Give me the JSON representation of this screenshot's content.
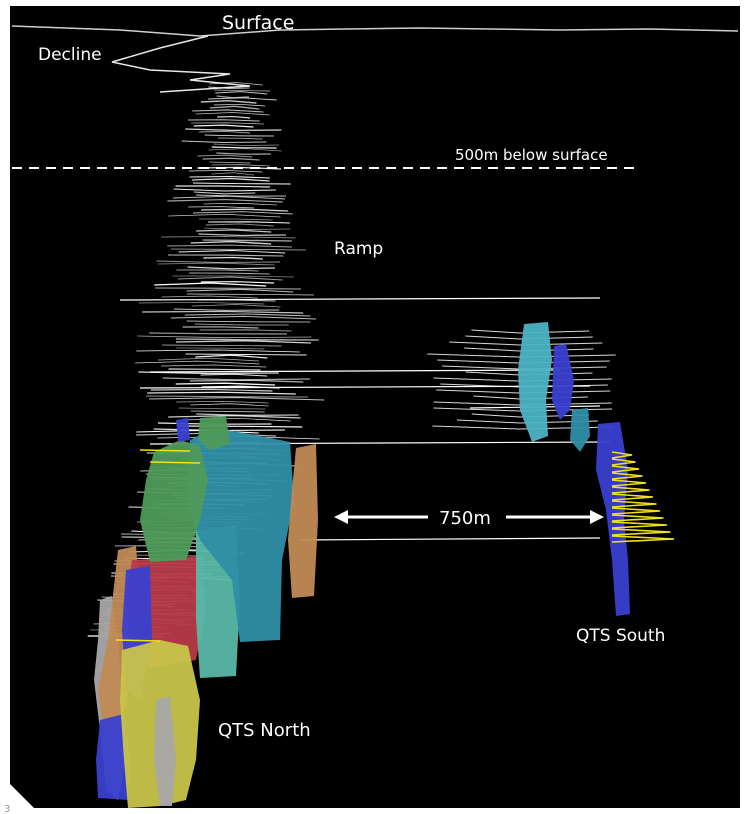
{
  "labels": {
    "surface": "Surface",
    "decline": "Decline",
    "depth_line": "500m below surface",
    "ramp": "Ramp",
    "distance": "750m",
    "qts_south": "QTS South",
    "qts_north": "QTS North",
    "corner_mark": "3"
  },
  "colors": {
    "background": "#000000",
    "frame": "#ffffff",
    "workings": "#ffffff",
    "orebody_green": "#4f9a5a",
    "orebody_teal": "#2f8ea6",
    "orebody_light_teal": "#5ab8a8",
    "orebody_cyan": "#4db3c6",
    "orebody_blue": "#3a3fd0",
    "orebody_yellow": "#c8c44a",
    "orebody_tan": "#c08a55",
    "orebody_red": "#b83a48",
    "orebody_grey": "#a8a8a8",
    "south_workings": "#f0e020"
  }
}
